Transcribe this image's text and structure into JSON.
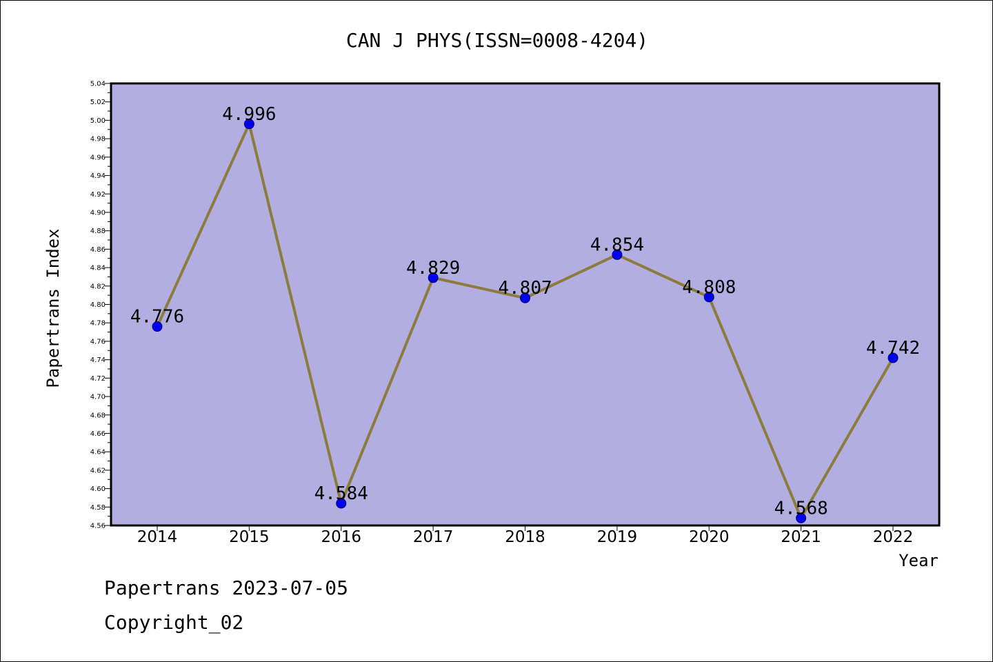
{
  "chart_data": {
    "type": "line",
    "title": "CAN J PHYS(ISSN=0008-4204)",
    "xlabel": "Year",
    "ylabel": "Papertrans Index",
    "categories": [
      "2014",
      "2015",
      "2016",
      "2017",
      "2018",
      "2019",
      "2020",
      "2021",
      "2022"
    ],
    "values": [
      4.776,
      4.996,
      4.584,
      4.829,
      4.807,
      4.854,
      4.808,
      4.568,
      4.742
    ],
    "data_labels": [
      "4.776",
      "4.996",
      "4.584",
      "4.829",
      "4.807",
      "4.854",
      "4.808",
      "4.568",
      "4.742"
    ],
    "ylim": [
      4.56,
      5.04
    ],
    "yticks": [
      "4.56",
      "4.58",
      "4.60",
      "4.62",
      "4.64",
      "4.66",
      "4.68",
      "4.70",
      "4.72",
      "4.74",
      "4.76",
      "4.78",
      "4.80",
      "4.82",
      "4.84",
      "4.86",
      "4.88",
      "4.90",
      "4.92",
      "4.94",
      "4.96",
      "4.98",
      "5.00",
      "5.02",
      "5.04"
    ],
    "grid": false,
    "legend": "none",
    "colors": {
      "plot_background": "#b3aee1",
      "line": "#8c7b3c",
      "marker": "#0000ee"
    }
  },
  "footer": {
    "line1": "Papertrans 2023-07-05",
    "line2": "Copyright_02"
  }
}
